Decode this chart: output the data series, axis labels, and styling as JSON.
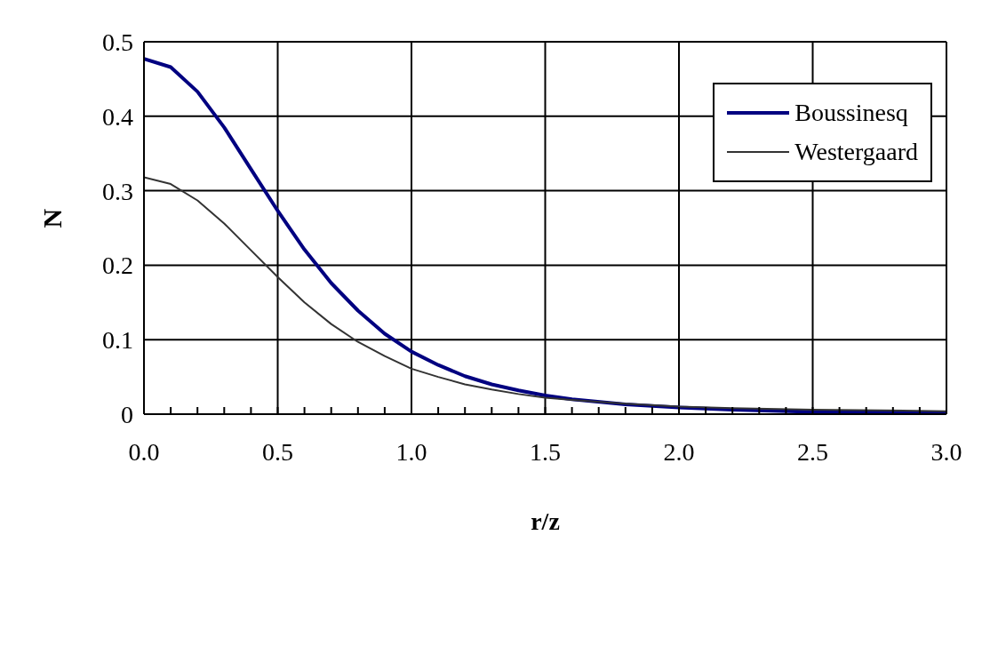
{
  "chart_data": {
    "type": "line",
    "xlabel": "r/z",
    "ylabel": "N",
    "xlim": [
      0,
      3
    ],
    "ylim": [
      0,
      0.5
    ],
    "xticks": [
      {
        "value": 0,
        "label": "0.0"
      },
      {
        "value": 0.1,
        "label": null
      },
      {
        "value": 0.2,
        "label": null
      },
      {
        "value": 0.3,
        "label": null
      },
      {
        "value": 0.4,
        "label": null
      },
      {
        "value": 0.5,
        "label": "0.5"
      },
      {
        "value": 0.6,
        "label": null
      },
      {
        "value": 0.7,
        "label": null
      },
      {
        "value": 0.8,
        "label": null
      },
      {
        "value": 0.9,
        "label": null
      },
      {
        "value": 1,
        "label": "1.0"
      },
      {
        "value": 1.1,
        "label": null
      },
      {
        "value": 1.2,
        "label": null
      },
      {
        "value": 1.3,
        "label": null
      },
      {
        "value": 1.4,
        "label": null
      },
      {
        "value": 1.5,
        "label": "1.5"
      },
      {
        "value": 1.6,
        "label": null
      },
      {
        "value": 1.7,
        "label": null
      },
      {
        "value": 1.8,
        "label": null
      },
      {
        "value": 1.9,
        "label": null
      },
      {
        "value": 2,
        "label": "2.0"
      },
      {
        "value": 2.1,
        "label": null
      },
      {
        "value": 2.2,
        "label": null
      },
      {
        "value": 2.3,
        "label": null
      },
      {
        "value": 2.4,
        "label": null
      },
      {
        "value": 2.5,
        "label": "2.5"
      },
      {
        "value": 2.6,
        "label": null
      },
      {
        "value": 2.7,
        "label": null
      },
      {
        "value": 2.8,
        "label": null
      },
      {
        "value": 2.9,
        "label": null
      },
      {
        "value": 3,
        "label": "3.0"
      }
    ],
    "yticks": [
      0,
      0.1,
      0.2,
      0.3,
      0.4,
      0.5
    ],
    "grid": true,
    "legend": "top right",
    "marker": "none",
    "line_style": "solid",
    "x": [
      0,
      0.1,
      0.2,
      0.3,
      0.4,
      0.5,
      0.6,
      0.7,
      0.8,
      0.9,
      1.0,
      1.1,
      1.2,
      1.3,
      1.4,
      1.5,
      1.6,
      1.8,
      2.0,
      2.2,
      2.5,
      3.0
    ],
    "series": [
      {
        "name": "Boussinesq",
        "color": "#000080",
        "values": [
          0.477,
          0.466,
          0.433,
          0.385,
          0.329,
          0.273,
          0.221,
          0.176,
          0.139,
          0.108,
          0.084,
          0.066,
          0.051,
          0.04,
          0.032,
          0.025,
          0.02,
          0.013,
          0.009,
          0.006,
          0.003,
          0.002
        ]
      },
      {
        "name": "Westergaard",
        "color": "#333333",
        "values": [
          0.318,
          0.309,
          0.287,
          0.256,
          0.22,
          0.184,
          0.15,
          0.121,
          0.097,
          0.078,
          0.061,
          0.05,
          0.04,
          0.033,
          0.027,
          0.022,
          0.019,
          0.014,
          0.01,
          0.008,
          0.006,
          0.004
        ]
      }
    ]
  }
}
